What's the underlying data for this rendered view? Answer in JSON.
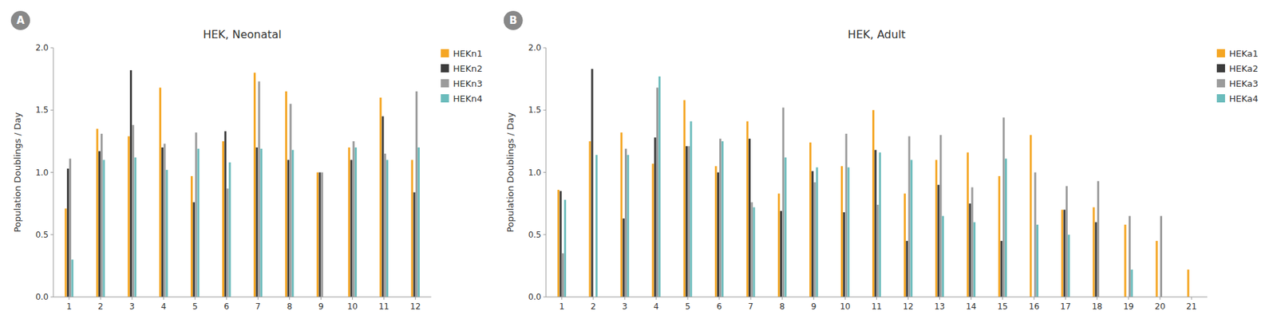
{
  "chart_data": [
    {
      "type": "bar",
      "title": "HEK, Neonatal",
      "ylabel": "Population Doublings / Day",
      "annotations": [
        "A"
      ],
      "categories": [
        "1",
        "2",
        "3",
        "4",
        "5",
        "6",
        "7",
        "8",
        "9",
        "10",
        "11",
        "12"
      ],
      "series": [
        {
          "name": "HEKn1",
          "color": "#F5A623",
          "values": [
            0.71,
            1.35,
            1.29,
            1.68,
            0.97,
            1.25,
            1.8,
            1.65,
            1.0,
            1.2,
            1.6,
            1.1
          ]
        },
        {
          "name": "HEKn2",
          "color": "#3C3C3C",
          "values": [
            1.03,
            1.17,
            1.82,
            1.2,
            0.76,
            1.33,
            1.2,
            1.1,
            1.0,
            1.1,
            1.45,
            0.84
          ]
        },
        {
          "name": "HEKn3",
          "color": "#9B9B9B",
          "values": [
            1.11,
            1.31,
            1.38,
            1.23,
            1.32,
            0.87,
            1.73,
            1.55,
            1.0,
            1.25,
            1.15,
            1.65
          ]
        },
        {
          "name": "HEKn4",
          "color": "#6BBCBC",
          "values": [
            0.3,
            1.1,
            1.12,
            1.02,
            1.19,
            1.08,
            1.19,
            1.18,
            0,
            1.2,
            1.1,
            1.2
          ]
        }
      ],
      "ylim": [
        0,
        2.0
      ],
      "yticks": [
        {
          "value": 0,
          "label": "0.0"
        },
        0.5,
        {
          "value": 1,
          "label": "1.0"
        },
        1.5,
        {
          "value": 2,
          "label": "2.0"
        }
      ],
      "grid": false,
      "legend": "right"
    },
    {
      "type": "bar",
      "title": "HEK, Adult",
      "ylabel": "Population Doublings / Day",
      "annotations": [
        "B"
      ],
      "categories": [
        "1",
        "2",
        "3",
        "4",
        "5",
        "6",
        "7",
        "8",
        "9",
        "10",
        "11",
        "12",
        "13",
        "14",
        "15",
        "16",
        "17",
        "18",
        "19",
        "20",
        "21"
      ],
      "series": [
        {
          "name": "HEKa1",
          "color": "#F5A623",
          "values": [
            0.86,
            1.25,
            1.32,
            1.07,
            1.58,
            1.05,
            1.41,
            0.83,
            1.24,
            1.05,
            1.5,
            0.83,
            1.1,
            1.16,
            0.97,
            1.3,
            0.7,
            0.72,
            0.58,
            0.45,
            0.22
          ]
        },
        {
          "name": "HEKa2",
          "color": "#3C3C3C",
          "values": [
            0.85,
            1.83,
            0.63,
            1.28,
            1.21,
            1.0,
            1.27,
            0.69,
            1.01,
            0.68,
            1.18,
            0.45,
            0.9,
            0.75,
            0.45,
            0,
            0.7,
            0.6,
            0,
            0,
            0
          ]
        },
        {
          "name": "HEKa3",
          "color": "#9B9B9B",
          "values": [
            0.35,
            0,
            1.19,
            1.68,
            1.21,
            1.27,
            0.76,
            1.52,
            0.92,
            1.31,
            0.74,
            1.29,
            1.3,
            0.88,
            1.44,
            1.0,
            0.89,
            0.93,
            0.65,
            0.65,
            0
          ]
        },
        {
          "name": "HEKa4",
          "color": "#6BBCBC",
          "values": [
            0.78,
            1.14,
            1.14,
            1.77,
            1.41,
            1.25,
            0.72,
            1.12,
            1.04,
            1.04,
            1.16,
            1.1,
            0.65,
            0.6,
            1.11,
            0.58,
            0.5,
            0,
            0.22,
            0,
            0
          ]
        }
      ],
      "ylim": [
        0,
        2.0
      ],
      "yticks": [
        {
          "value": 0,
          "label": "0.0"
        },
        0.5,
        {
          "value": 1,
          "label": "1.0"
        },
        1.5,
        {
          "value": 2,
          "label": "2.0"
        }
      ],
      "grid": false,
      "legend": "right"
    }
  ]
}
